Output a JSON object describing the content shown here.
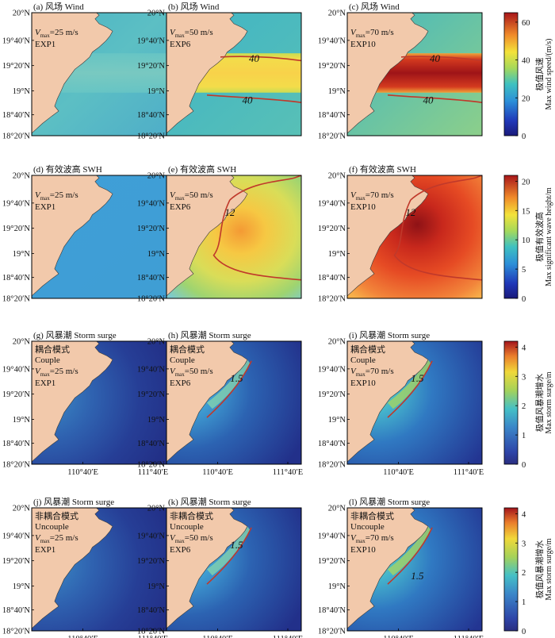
{
  "figure": {
    "colors": {
      "land": "#f2c9ab",
      "border": "#000000",
      "contour": "#c0392b",
      "wind_outside": "#47b8c4",
      "swh_outside": "#3f9fd6"
    },
    "lat_tick_labels": [
      "20°N",
      "19°40′N",
      "19°20′N",
      "19°N",
      "18°40′N",
      "18°20′N"
    ],
    "lon_tick_labels": [
      "110°40′E",
      "111°40′E"
    ]
  },
  "rows": [
    {
      "key": "wind",
      "colorbar": {
        "cn_label": "极值风速",
        "en_label": "Max wind speed/(m/s)",
        "ticks": [
          "60",
          "40",
          "20",
          "0"
        ],
        "ticks_values": [
          60,
          40,
          20,
          0
        ],
        "range": [
          0,
          65
        ]
      },
      "panels": [
        {
          "title": "(a) 风场 Wind",
          "vmax": "=25 m/s",
          "exp": "EXP1",
          "mode": "",
          "mode_en": "",
          "contour": ""
        },
        {
          "title": "(b) 风场 Wind",
          "vmax": "=50 m/s",
          "exp": "EXP6",
          "mode": "",
          "mode_en": "",
          "contour": "40"
        },
        {
          "title": "(c) 风场 Wind",
          "vmax": "=70 m/s",
          "exp": "EXP10",
          "mode": "",
          "mode_en": "",
          "contour": "40"
        }
      ]
    },
    {
      "key": "swh",
      "colorbar": {
        "cn_label": "极值有效波高",
        "en_label": "Max significant wave height/m",
        "ticks": [
          "20",
          "15",
          "10",
          "5",
          "0"
        ],
        "ticks_values": [
          20,
          15,
          10,
          5,
          0
        ],
        "range": [
          0,
          21
        ]
      },
      "panels": [
        {
          "title": "(d) 有效波高 SWH",
          "vmax": "=25 m/s",
          "exp": "EXP1",
          "mode": "",
          "mode_en": "",
          "contour": ""
        },
        {
          "title": "(e) 有效波高 SWH",
          "vmax": "=50 m/s",
          "exp": "EXP6",
          "mode": "",
          "mode_en": "",
          "contour": "12"
        },
        {
          "title": "(f) 有效波高 SWH",
          "vmax": "=70 m/s",
          "exp": "EXP10",
          "mode": "",
          "mode_en": "",
          "contour": "12"
        }
      ]
    },
    {
      "key": "surge_couple",
      "colorbar": {
        "cn_label": "极值风暴潮增水",
        "en_label": "Max storm surge/m",
        "ticks": [
          "4",
          "3",
          "2",
          "1",
          "0"
        ],
        "ticks_values": [
          4,
          3,
          2,
          1,
          0
        ],
        "range": [
          0,
          4.2
        ]
      },
      "panels": [
        {
          "title": "(g) 风暴潮 Storm surge",
          "vmax": "=25 m/s",
          "exp": "EXP1",
          "mode": "耦合模式",
          "mode_en": "Couple",
          "contour": ""
        },
        {
          "title": "(h) 风暴潮 Storm surge",
          "vmax": "=50 m/s",
          "exp": "EXP6",
          "mode": "耦合模式",
          "mode_en": "Couple",
          "contour": "1.5"
        },
        {
          "title": "(i) 风暴潮 Storm surge",
          "vmax": "=70 m/s",
          "exp": "EXP10",
          "mode": "耦合模式",
          "mode_en": "Couple",
          "contour": "1.5"
        }
      ]
    },
    {
      "key": "surge_uncouple",
      "colorbar": {
        "cn_label": "极值风暴潮增水",
        "en_label": "Max storm surge/m",
        "ticks": [
          "4",
          "3",
          "2",
          "1",
          "0"
        ],
        "ticks_values": [
          4,
          3,
          2,
          1,
          0
        ],
        "range": [
          0,
          4.2
        ]
      },
      "panels": [
        {
          "title": "(j) 风暴潮 Storm surge",
          "vmax": "=25 m/s",
          "exp": "EXP1",
          "mode": "非耦合模式",
          "mode_en": "Uncouple",
          "contour": ""
        },
        {
          "title": "(k) 风暴潮 Storm surge",
          "vmax": "=50 m/s",
          "exp": "EXP6",
          "mode": "非耦合模式",
          "mode_en": "Uncouple",
          "contour": "1.5"
        },
        {
          "title": "(l) 风暴潮 Storm surge",
          "vmax": "=70 m/s",
          "exp": "EXP10",
          "mode": "非耦合模式",
          "mode_en": "Uncouple",
          "contour": "1.5"
        }
      ]
    }
  ],
  "chart_data": {
    "type": "heatmap",
    "x_ticks": [
      "110°40′E",
      "111°40′E"
    ],
    "y_ticks": [
      "20°N",
      "19°40′N",
      "19°20′N",
      "19°N",
      "18°40′N",
      "18°20′N"
    ],
    "panels": [
      {
        "id": "a",
        "field": "wind",
        "exp": "EXP1",
        "vmax_ms": 25,
        "contour": null
      },
      {
        "id": "b",
        "field": "wind",
        "exp": "EXP6",
        "vmax_ms": 50,
        "contour": 40
      },
      {
        "id": "c",
        "field": "wind",
        "exp": "EXP10",
        "vmax_ms": 70,
        "contour": 40
      },
      {
        "id": "d",
        "field": "swh",
        "exp": "EXP1",
        "vmax_ms": 25,
        "contour": null
      },
      {
        "id": "e",
        "field": "swh",
        "exp": "EXP6",
        "vmax_ms": 50,
        "contour": 12
      },
      {
        "id": "f",
        "field": "swh",
        "exp": "EXP10",
        "vmax_ms": 70,
        "contour": 12
      },
      {
        "id": "g",
        "field": "storm_surge",
        "mode": "Couple",
        "exp": "EXP1",
        "vmax_ms": 25,
        "contour": null
      },
      {
        "id": "h",
        "field": "storm_surge",
        "mode": "Couple",
        "exp": "EXP6",
        "vmax_ms": 50,
        "contour": 1.5
      },
      {
        "id": "i",
        "field": "storm_surge",
        "mode": "Couple",
        "exp": "EXP10",
        "vmax_ms": 70,
        "contour": 1.5
      },
      {
        "id": "j",
        "field": "storm_surge",
        "mode": "Uncouple",
        "exp": "EXP1",
        "vmax_ms": 25,
        "contour": null
      },
      {
        "id": "k",
        "field": "storm_surge",
        "mode": "Uncouple",
        "exp": "EXP6",
        "vmax_ms": 50,
        "contour": 1.5
      },
      {
        "id": "l",
        "field": "storm_surge",
        "mode": "Uncouple",
        "exp": "EXP10",
        "vmax_ms": 70,
        "contour": 1.5
      }
    ]
  }
}
